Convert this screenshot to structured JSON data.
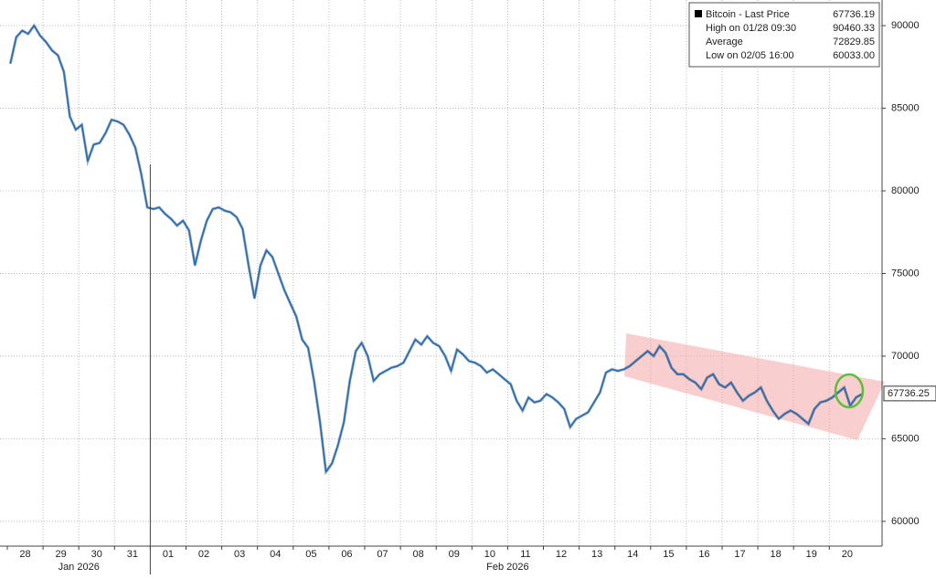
{
  "chart_data": {
    "type": "line",
    "categories": [
      "28",
      "29",
      "30",
      "31",
      "01",
      "02",
      "03",
      "04",
      "05",
      "06",
      "07",
      "08",
      "09",
      "10",
      "11",
      "12",
      "13",
      "14",
      "15",
      "16",
      "17",
      "18",
      "19",
      "20"
    ],
    "months": [
      {
        "label": "Jan 2026",
        "from": 0,
        "to": 3
      },
      {
        "label": "Feb 2026",
        "from": 4,
        "to": 23
      }
    ],
    "series": [
      {
        "name": "Bitcoin - Last Price",
        "color": "#1f6fc0",
        "values": [
          [
            87700,
            89300,
            89700,
            89500,
            90000,
            89400
          ],
          [
            89000,
            88500,
            88200,
            87200,
            84500,
            83700
          ],
          [
            84000,
            81800,
            82800,
            82900,
            83500,
            84300
          ],
          [
            84200,
            84000,
            83400,
            82600,
            81000,
            79000
          ],
          [
            78900,
            79000,
            78600,
            78300,
            77900,
            78200
          ],
          [
            77600,
            75500,
            77000,
            78200,
            78900,
            79000
          ],
          [
            78800,
            78700,
            78400,
            77700,
            75500,
            73500
          ],
          [
            75500,
            76400,
            76000,
            75000,
            74000,
            73200
          ],
          [
            72400,
            71000,
            70500,
            68500,
            66000,
            63000
          ],
          [
            63500,
            64600,
            66000,
            68500,
            70300,
            70800
          ],
          [
            70000,
            68500,
            68900,
            69100,
            69300,
            69400
          ],
          [
            69600,
            70300,
            71000,
            70700,
            71200,
            70800
          ],
          [
            70600,
            70000,
            69100,
            70400,
            70100,
            69700
          ],
          [
            69600,
            69400,
            69000,
            69200,
            68900,
            68600
          ],
          [
            68300,
            67300,
            66700,
            67500,
            67200,
            67300
          ],
          [
            67700,
            67500,
            67200,
            66800,
            65700,
            66200
          ],
          [
            66400,
            66600,
            67200,
            67800,
            69000,
            69200
          ],
          [
            69100,
            69200,
            69400,
            69700,
            70000,
            70300
          ],
          [
            70000,
            70600,
            70200,
            69300,
            68900,
            68900
          ],
          [
            68600,
            68400,
            68000,
            68700,
            68900,
            68300
          ],
          [
            68100,
            68400,
            67800,
            67300,
            67600,
            67800
          ],
          [
            68100,
            67300,
            66700,
            66200,
            66500,
            66700
          ],
          [
            66500,
            66200,
            65900,
            66800,
            67200,
            67300
          ],
          [
            67500,
            67800,
            68100,
            67000,
            67500,
            67700
          ]
        ]
      }
    ],
    "last_price": 67736.19,
    "stats": [
      {
        "label": "High on 01/28 09:30",
        "value": 90460.33
      },
      {
        "label": "Average",
        "value": 72829.85
      },
      {
        "label": "Low on 02/05 16:00",
        "value": 60033,
        "value_label": "60033.00"
      }
    ],
    "last_value_marker": 67736.25,
    "ylim": [
      58500,
      91550
    ],
    "yticks": [
      60000,
      65000,
      70000,
      75000,
      80000,
      85000,
      90000
    ],
    "grid": true
  }
}
